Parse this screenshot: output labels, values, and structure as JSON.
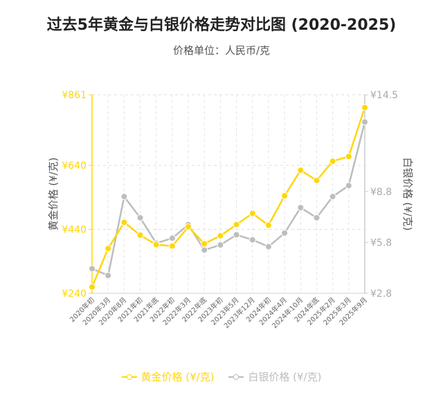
{
  "chart_data": {
    "type": "line",
    "title": "过去5年黄金与白银价格走势对比图 (2020-2025)",
    "subtitle": "价格单位：人民币/克",
    "categories": [
      "2020年初",
      "2020年3月",
      "2020年8月",
      "2021年初",
      "2021年底",
      "2022年初",
      "2022年3月",
      "2022年底",
      "2023年初",
      "2023年5月",
      "2023年12月",
      "2024年初",
      "2024年4月",
      "2024年10月",
      "2024年底",
      "2025年2月",
      "2025年3月",
      "2025年9月"
    ],
    "y_left": {
      "label": "黄金价格 (¥/克)",
      "ticks": [
        "¥240",
        "¥440",
        "¥640",
        "¥861"
      ],
      "range": [
        240,
        861
      ]
    },
    "y_right": {
      "label": "白银价格 (¥/克)",
      "ticks": [
        "¥2.8",
        "¥5.8",
        "¥8.8",
        "¥14.5"
      ],
      "range": [
        2.8,
        14.5
      ]
    },
    "series": [
      {
        "name": "黄金价格 (¥/克)",
        "axis": "left",
        "color": "#FFD60A",
        "values": [
          260,
          380,
          462,
          422,
          392,
          388,
          448,
          395,
          420,
          455,
          490,
          453,
          545,
          625,
          593,
          653,
          668,
          821
        ]
      },
      {
        "name": "白银价格 (¥/克)",
        "axis": "right",
        "color": "#BDBDBD",
        "values": [
          4.25,
          3.85,
          8.5,
          7.25,
          5.75,
          6.05,
          6.85,
          5.35,
          5.65,
          6.25,
          5.95,
          5.55,
          6.35,
          7.85,
          7.25,
          8.5,
          9.15,
          12.9
        ]
      }
    ],
    "grid": true,
    "legend_position": "bottom"
  }
}
